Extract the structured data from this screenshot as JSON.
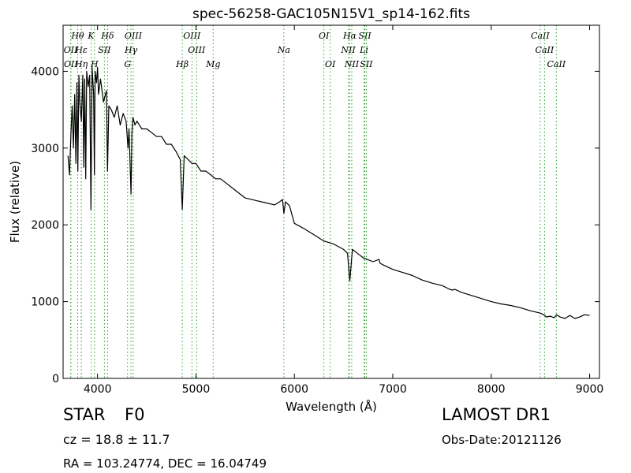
{
  "chart_data": {
    "type": "line",
    "title": "spec-56258-GAC105N15V1_sp14-162.fits",
    "xlabel": "Wavelength (Å)",
    "ylabel": "Flux (relative)",
    "xlim": [
      3650,
      9100
    ],
    "ylim": [
      0,
      4600
    ],
    "xticks": [
      4000,
      5000,
      6000,
      7000,
      8000,
      9000
    ],
    "yticks": [
      0,
      1000,
      2000,
      3000,
      4000
    ],
    "grid": false,
    "line_color": "#000000",
    "marker_color": "#2ca02c",
    "series": [
      {
        "x": [
          3700,
          3715,
          3730,
          3742,
          3755,
          3768,
          3780,
          3790,
          3800,
          3810,
          3820,
          3835,
          3850,
          3860,
          3870,
          3880,
          3890,
          3905,
          3920,
          3933,
          3945,
          3960,
          3968,
          3975,
          3990,
          4000,
          4010,
          4030,
          4060,
          4090,
          4101,
          4115,
          4140,
          4170,
          4200,
          4230,
          4260,
          4290,
          4310,
          4320,
          4340,
          4350,
          4360,
          4380,
          4400,
          4450,
          4500,
          4550,
          4600,
          4650,
          4700,
          4750,
          4800,
          4840,
          4861,
          4880,
          4920,
          4960,
          5000,
          5050,
          5100,
          5150,
          5200,
          5250,
          5300,
          5400,
          5500,
          5600,
          5700,
          5800,
          5850,
          5880,
          5893,
          5910,
          5950,
          6000,
          6100,
          6200,
          6300,
          6400,
          6500,
          6540,
          6563,
          6590,
          6650,
          6700,
          6800,
          6860,
          6870,
          6900,
          7000,
          7100,
          7200,
          7300,
          7400,
          7500,
          7580,
          7605,
          7630,
          7700,
          7800,
          7900,
          8000,
          8100,
          8200,
          8300,
          8400,
          8500,
          8530,
          8545,
          8560,
          8600,
          8640,
          8665,
          8700,
          8750,
          8800,
          8850,
          8900,
          8950,
          9000
        ],
        "y": [
          2900,
          2650,
          3200,
          3550,
          3000,
          3700,
          2800,
          3850,
          2700,
          3950,
          3600,
          3350,
          3950,
          2750,
          3900,
          2600,
          4000,
          3800,
          3950,
          2200,
          4050,
          3700,
          2650,
          4000,
          3850,
          4050,
          3700,
          3900,
          3600,
          3750,
          2700,
          3550,
          3500,
          3400,
          3550,
          3300,
          3450,
          3350,
          3000,
          3250,
          2400,
          3200,
          3400,
          3300,
          3350,
          3250,
          3250,
          3200,
          3150,
          3150,
          3050,
          3050,
          2950,
          2850,
          2200,
          2900,
          2850,
          2800,
          2800,
          2700,
          2700,
          2650,
          2600,
          2600,
          2550,
          2450,
          2350,
          2320,
          2290,
          2260,
          2300,
          2330,
          2150,
          2300,
          2250,
          2020,
          1950,
          1870,
          1790,
          1750,
          1680,
          1630,
          1270,
          1680,
          1620,
          1570,
          1520,
          1550,
          1500,
          1480,
          1420,
          1380,
          1340,
          1280,
          1240,
          1210,
          1160,
          1150,
          1160,
          1120,
          1080,
          1040,
          1000,
          970,
          950,
          920,
          880,
          850,
          830,
          820,
          800,
          810,
          790,
          830,
          800,
          780,
          820,
          780,
          800,
          830,
          820
        ]
      }
    ],
    "lines": [
      {
        "label": "Hθ",
        "x": 3798,
        "row": 0
      },
      {
        "label": "K",
        "x": 3934,
        "row": 0
      },
      {
        "label": "Hδ",
        "x": 4102,
        "row": 0
      },
      {
        "label": "OIII",
        "x": 4363,
        "row": 0
      },
      {
        "label": "OIII",
        "x": 4959,
        "row": 0
      },
      {
        "label": "OI",
        "x": 6300,
        "row": 0
      },
      {
        "label": "Hα",
        "x": 6563,
        "row": 0
      },
      {
        "label": "SII",
        "x": 6716,
        "row": 0
      },
      {
        "label": "CaII",
        "x": 8498,
        "row": 0
      },
      {
        "label": "OII",
        "x": 3727,
        "row": 1
      },
      {
        "label": "Hε",
        "x": 3835,
        "row": 1
      },
      {
        "label": "SII",
        "x": 4070,
        "row": 1
      },
      {
        "label": "Hγ",
        "x": 4340,
        "row": 1
      },
      {
        "label": "OIII",
        "x": 5007,
        "row": 1
      },
      {
        "label": "Na",
        "x": 5893,
        "row": 1
      },
      {
        "label": "NII",
        "x": 6548,
        "row": 1
      },
      {
        "label": "Li",
        "x": 6708,
        "row": 1
      },
      {
        "label": "CaII",
        "x": 8542,
        "row": 1
      },
      {
        "label": "OII",
        "x": 3729,
        "row": 2
      },
      {
        "label": "Hη",
        "x": 3835,
        "row": 2
      },
      {
        "label": "H",
        "x": 3969,
        "row": 2
      },
      {
        "label": "G",
        "x": 4305,
        "row": 2
      },
      {
        "label": "Hβ",
        "x": 4861,
        "row": 2
      },
      {
        "label": "Mg",
        "x": 5175,
        "row": 2
      },
      {
        "label": "OI",
        "x": 6364,
        "row": 2
      },
      {
        "label": "NII",
        "x": 6583,
        "row": 2
      },
      {
        "label": "SII",
        "x": 6731,
        "row": 2
      },
      {
        "label": "CaII",
        "x": 8662,
        "row": 2
      }
    ]
  },
  "info": {
    "object_class": "STAR",
    "subclass": "F0",
    "redshift": "cz = 18.8 ± 11.7",
    "coords": "RA = 103.24774, DEC = 16.04749",
    "survey": "LAMOST DR1",
    "obs_date": "Obs-Date:20121126"
  }
}
